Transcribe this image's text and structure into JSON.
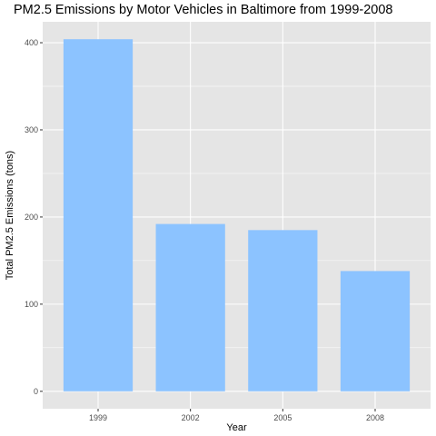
{
  "chart_data": {
    "type": "bar",
    "title": "PM2.5 Emissions by Motor Vehicles in Baltimore from 1999-2008",
    "xlabel": "Year",
    "ylabel": "Total PM2.5 Emissions (tons)",
    "categories": [
      "1999",
      "2002",
      "2005",
      "2008"
    ],
    "values": [
      404,
      192,
      185,
      138
    ],
    "ylim": [
      -20,
      424
    ],
    "yticks": [
      0,
      100,
      200,
      300,
      400
    ],
    "grid": true,
    "bar_color": "#8cc3ff",
    "panel_background": "#e5e5e5",
    "grid_color": "#ffffff"
  }
}
